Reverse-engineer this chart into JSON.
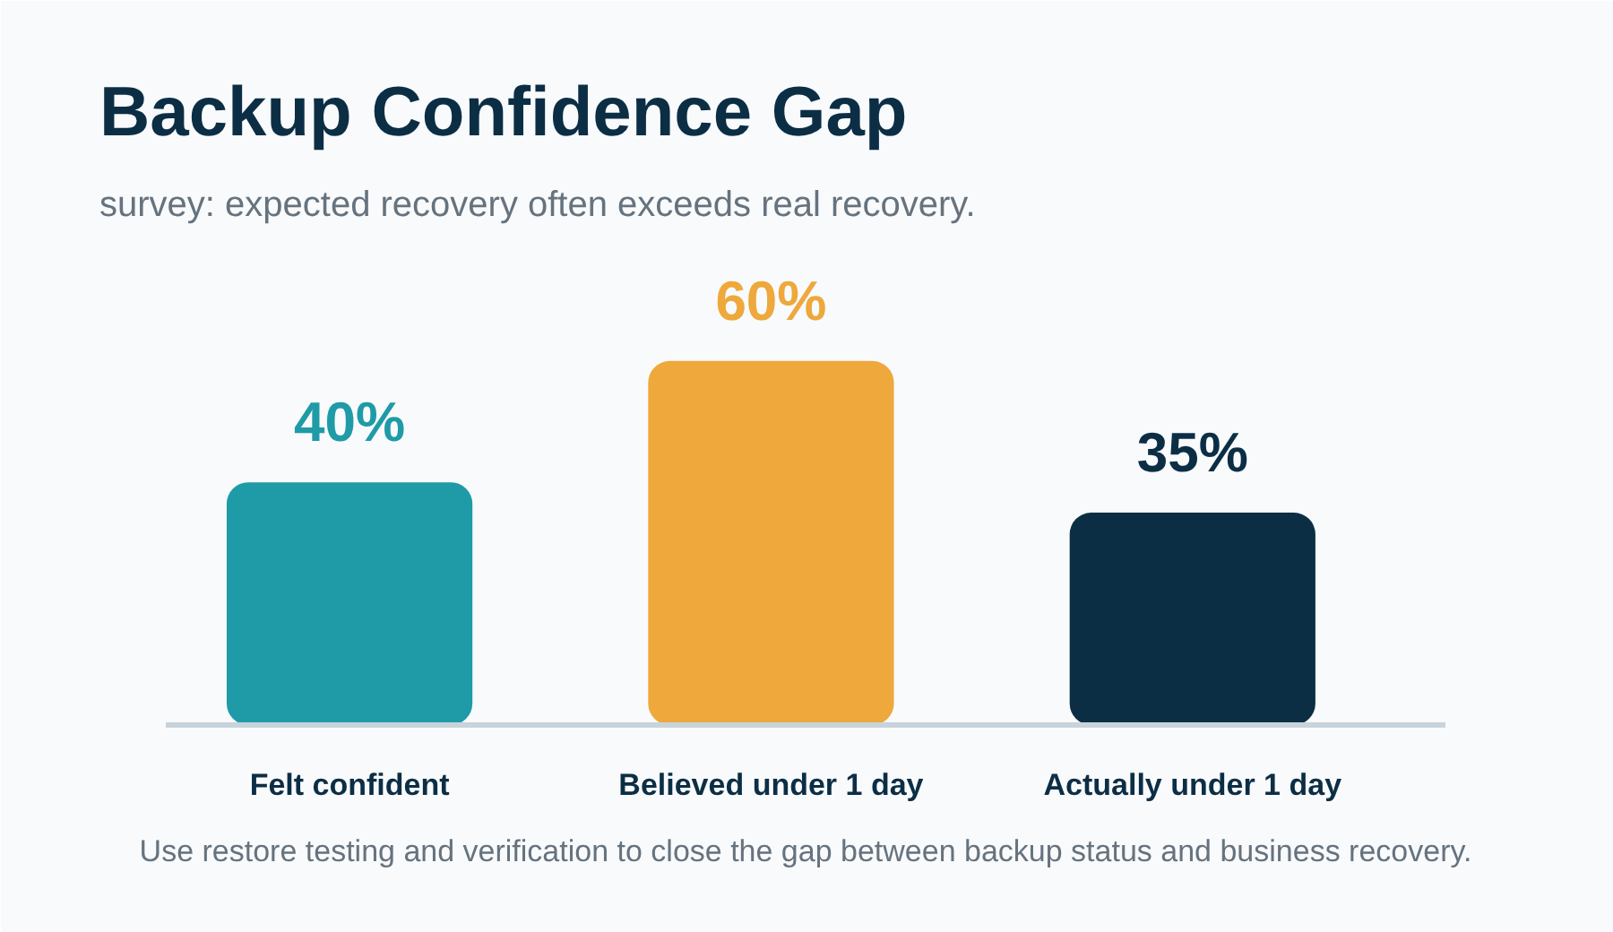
{
  "chart_data": {
    "type": "bar",
    "title": "Backup Confidence Gap",
    "subtitle": "survey: expected recovery often exceeds real recovery.",
    "categories": [
      "Felt confident",
      "Believed under 1 day",
      "Actually under 1 day"
    ],
    "values": [
      40,
      60,
      35
    ],
    "colors": [
      "#1e9ba7",
      "#eea83b",
      "#0c2e45"
    ],
    "value_labels": [
      "40%",
      "60%",
      "35%"
    ],
    "annotations": [
      "Use restore testing and verification to close the gap between backup status and business recovery."
    ]
  }
}
